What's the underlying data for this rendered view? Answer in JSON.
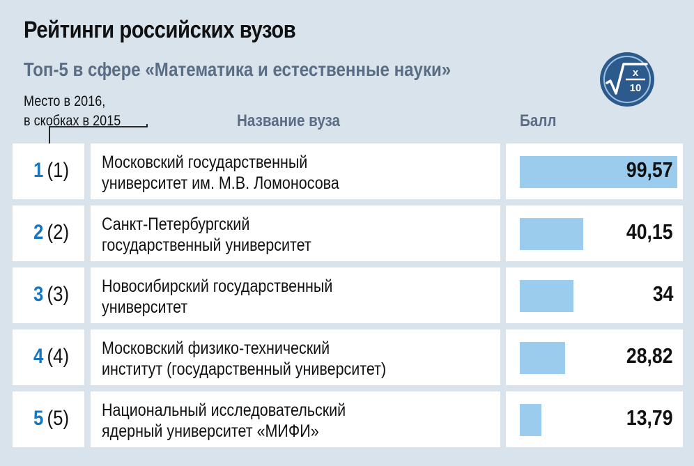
{
  "title": "Рейтинги российских вузов",
  "subtitle": "Топ-5 в сфере «Математика и естественные науки»",
  "place_note": {
    "line1": "Место в 2016,",
    "line2": "в скобках в 2015"
  },
  "columns": {
    "name": "Название вуза",
    "score": "Балл"
  },
  "badge": {
    "icon": "sqrt-x-over-10-icon",
    "numerator": "x",
    "denominator": "10"
  },
  "colors": {
    "background": "#d8e3ec",
    "rank_accent": "#1676c0",
    "bar": "#9ccced",
    "badge": "#2d5a8c"
  },
  "chart_data": {
    "type": "bar",
    "categories": [
      "Московский государственный университет им. М.В. Ломоносова",
      "Санкт-Петербургский государственный университет",
      "Новосибирский государственный университет",
      "Московский физико-технический институт (государственный университет)",
      "Национальный исследовательский ядерный университет «МИФИ»"
    ],
    "values": [
      99.57,
      40.15,
      34,
      28.82,
      13.79
    ],
    "ylim": [
      0,
      100
    ],
    "rows": [
      {
        "rank": "1",
        "prev_rank": "(1)",
        "name_line1": "Московский государственный",
        "name_line2": "университет им. М.В. Ломоносова",
        "score": 99.57,
        "score_label": "99,57"
      },
      {
        "rank": "2",
        "prev_rank": "(2)",
        "name_line1": "Санкт-Петербургский",
        "name_line2": "государственный университет",
        "score": 40.15,
        "score_label": "40,15"
      },
      {
        "rank": "3",
        "prev_rank": "(3)",
        "name_line1": "Новосибирский государственный",
        "name_line2": "университет",
        "score": 34,
        "score_label": "34"
      },
      {
        "rank": "4",
        "prev_rank": "(4)",
        "name_line1": "Московский физико-технический",
        "name_line2": "институт (государственный университет)",
        "score": 28.82,
        "score_label": "28,82"
      },
      {
        "rank": "5",
        "prev_rank": "(5)",
        "name_line1": "Национальный исследовательский",
        "name_line2": "ядерный университет «МИФИ»",
        "score": 13.79,
        "score_label": "13,79"
      }
    ]
  }
}
